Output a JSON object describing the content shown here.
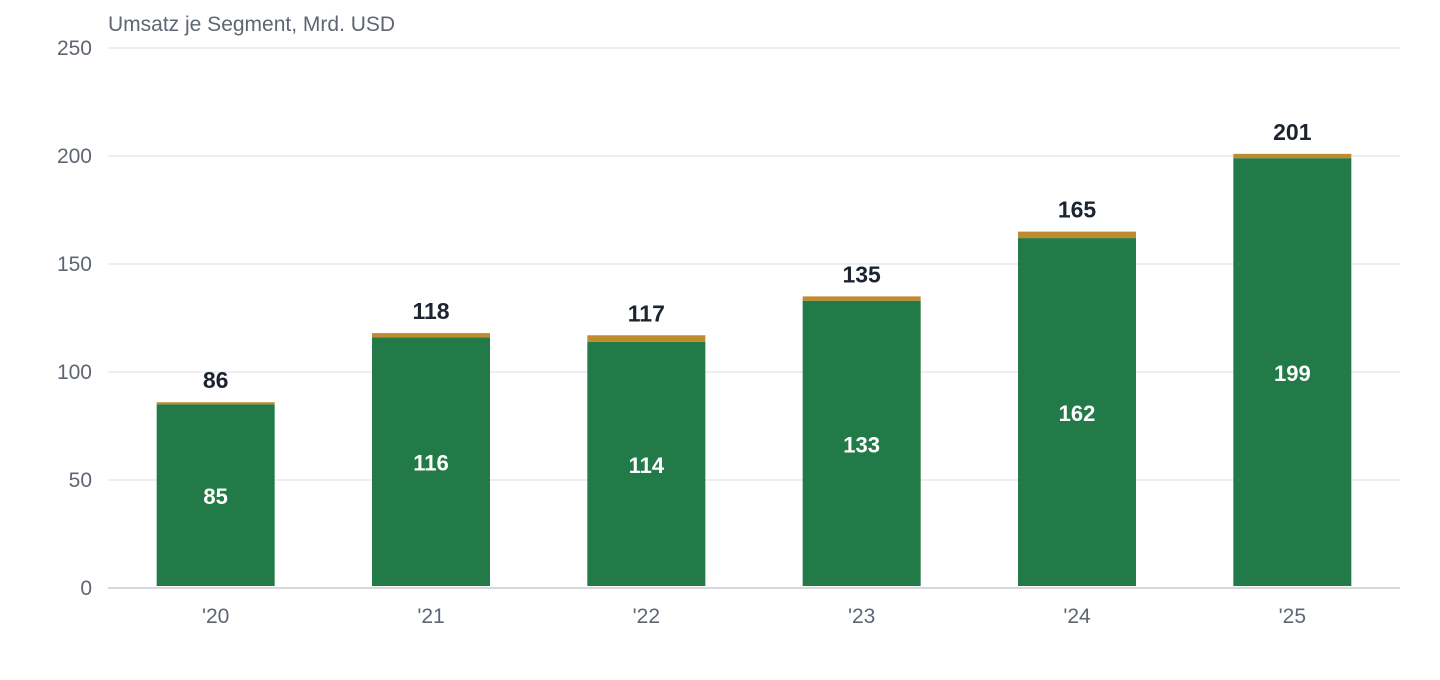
{
  "chart_data": {
    "type": "bar",
    "stacked": true,
    "title": "",
    "ylabel": "Umsatz je Segment, Mrd. USD",
    "xlabel": "",
    "categories": [
      "'20",
      "'21",
      "'22",
      "'23",
      "'24",
      "'25"
    ],
    "series": [
      {
        "values": [
          85,
          116,
          114,
          133,
          162,
          199
        ],
        "color": "#227a48"
      },
      {
        "values": [
          1,
          2,
          3,
          2,
          3,
          2
        ],
        "color": "#c08a2e"
      }
    ],
    "totals": [
      86,
      118,
      117,
      135,
      165,
      201
    ],
    "inner_labels": [
      "85",
      "116",
      "114",
      "133",
      "162",
      "199"
    ],
    "total_labels": [
      "86",
      "118",
      "117",
      "135",
      "165",
      "201"
    ],
    "ylim": [
      0,
      250
    ],
    "yticks": [
      "0",
      "50",
      "100",
      "150",
      "200",
      "250"
    ],
    "grid": true,
    "legend": "none"
  }
}
